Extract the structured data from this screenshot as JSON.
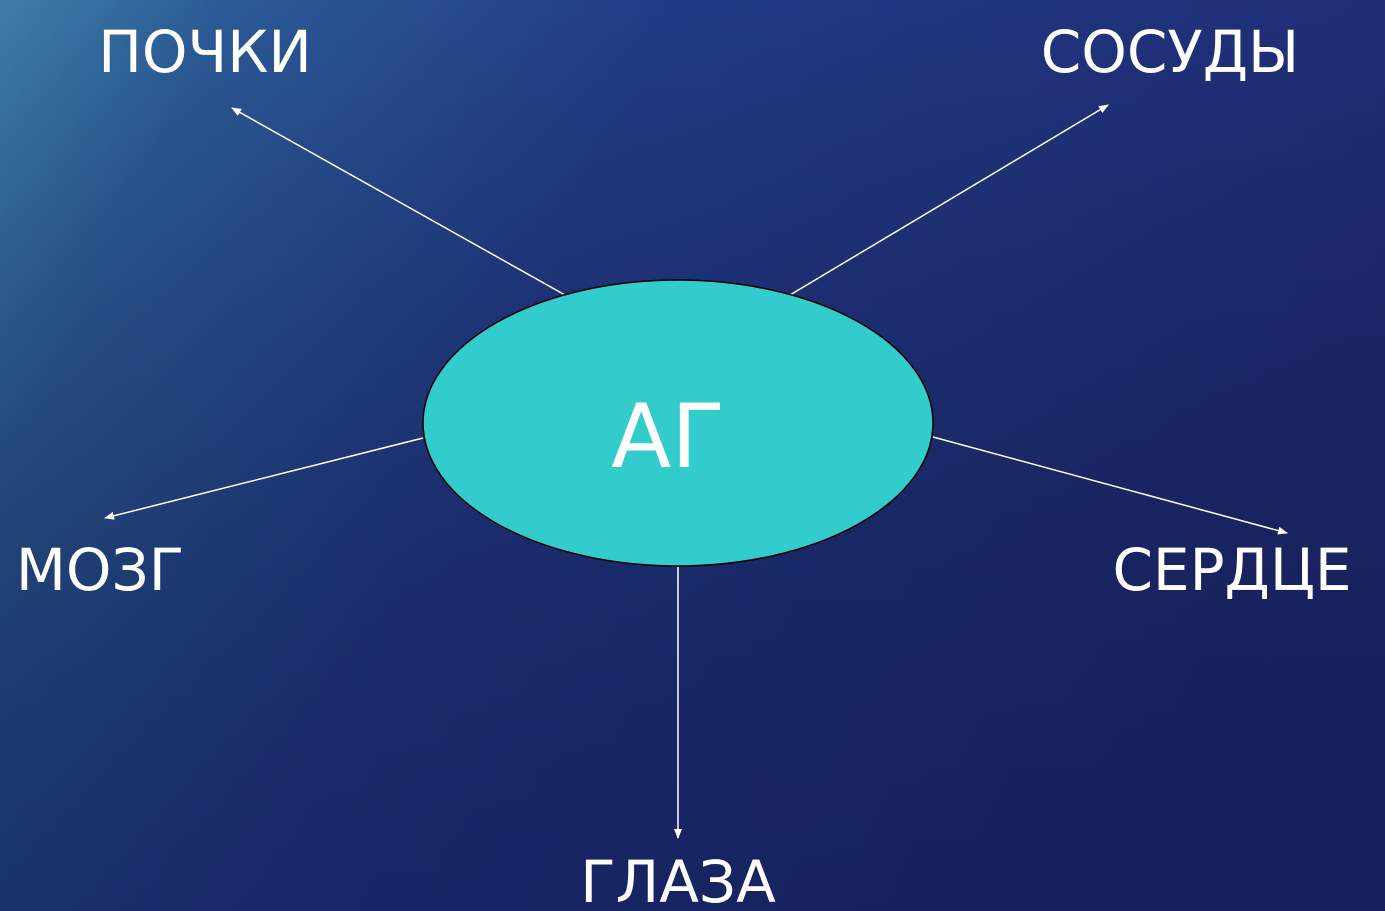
{
  "center": {
    "label": "АГ"
  },
  "nodes": [
    {
      "label": "ПОЧКИ"
    },
    {
      "label": "СОСУДЫ"
    },
    {
      "label": "МОЗГ"
    },
    {
      "label": "СЕРДЦЕ"
    },
    {
      "label": "ГЛАЗА"
    }
  ]
}
